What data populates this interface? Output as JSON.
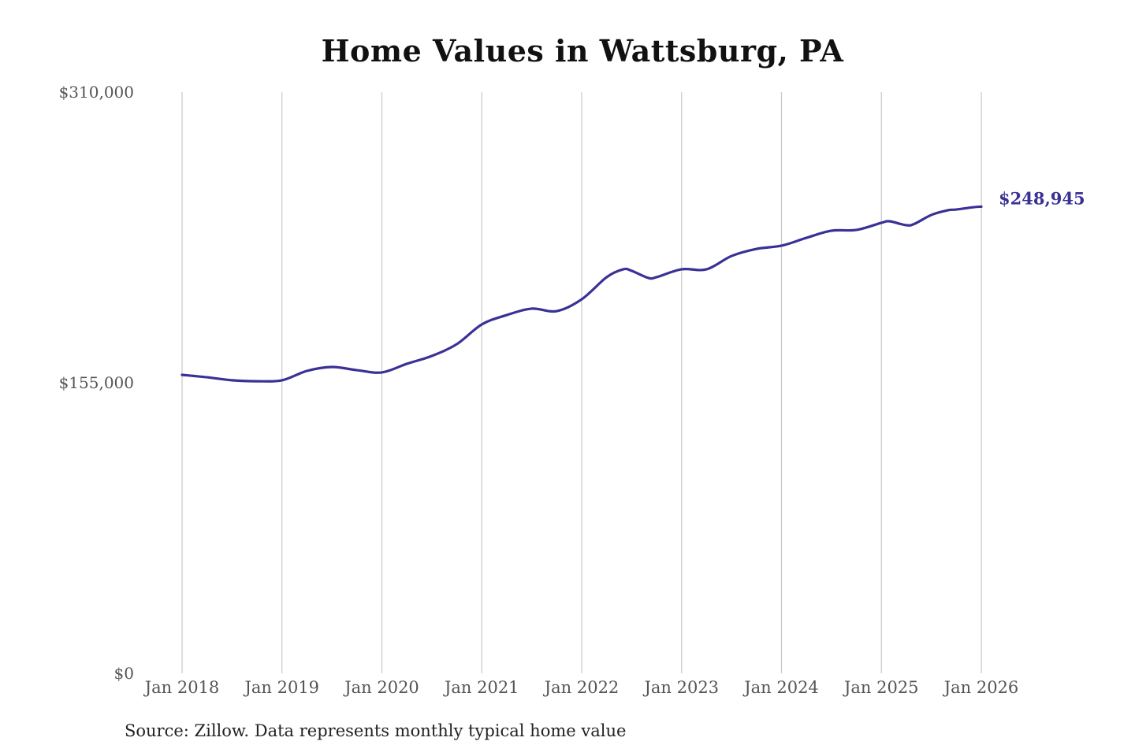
{
  "chart_data": {
    "type": "line",
    "title": "Home Values in Wattsburg, PA",
    "source": "Source: Zillow. Data represents monthly typical home value",
    "xlabel": "",
    "ylabel": "",
    "ylim": [
      0,
      310000
    ],
    "y_ticks": [
      "$0",
      "$155,000",
      "$310,000"
    ],
    "y_tick_values": [
      0,
      155000,
      310000
    ],
    "x_ticks": [
      "Jan 2018",
      "Jan 2019",
      "Jan 2020",
      "Jan 2021",
      "Jan 2022",
      "Jan 2023",
      "Jan 2024",
      "Jan 2025",
      "Jan 2026"
    ],
    "grid": "vertical",
    "line_color": "#3a3195",
    "end_label": "$248,945",
    "series": [
      {
        "x": [
          "2018-01",
          "2018-04",
          "2018-07",
          "2018-10",
          "2019-01",
          "2019-04",
          "2019-07",
          "2019-10",
          "2020-01",
          "2020-04",
          "2020-07",
          "2020-10",
          "2021-01",
          "2021-04",
          "2021-07",
          "2021-10",
          "2022-01",
          "2022-04",
          "2022-06",
          "2022-07",
          "2022-09",
          "2022-10",
          "2023-01",
          "2023-04",
          "2023-07",
          "2023-10",
          "2024-01",
          "2024-04",
          "2024-07",
          "2024-10",
          "2025-01",
          "2025-02",
          "2025-04",
          "2025-05",
          "2025-07",
          "2025-09",
          "2025-10",
          "2025-12",
          "2026-01"
        ],
        "values": [
          159200,
          157900,
          156300,
          155800,
          156300,
          161300,
          163400,
          161700,
          160500,
          165100,
          169300,
          175600,
          186100,
          191100,
          194500,
          193200,
          199500,
          211300,
          215500,
          214700,
          210900,
          211300,
          215500,
          215500,
          222600,
          226400,
          228100,
          232300,
          236100,
          236500,
          240300,
          241100,
          239000,
          239800,
          244500,
          247000,
          247400,
          248600,
          248945
        ]
      }
    ]
  }
}
